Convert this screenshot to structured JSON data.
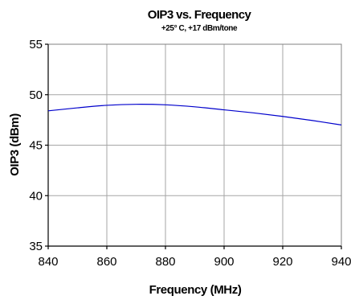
{
  "chart_data": {
    "type": "line",
    "title": "OIP3 vs. Frequency",
    "subtitle": "+25° C, +17 dBm/tone",
    "xlabel": "Frequency (MHz)",
    "ylabel": "OIP3 (dBm)",
    "xlim": [
      840,
      940
    ],
    "ylim": [
      35,
      55
    ],
    "xticks": [
      840,
      860,
      880,
      900,
      920,
      940
    ],
    "yticks": [
      35,
      40,
      45,
      50,
      55
    ],
    "grid": true,
    "series": [
      {
        "color": "#0000cc",
        "x": [
          840,
          850,
          860,
          870,
          880,
          890,
          900,
          910,
          920,
          930,
          940
        ],
        "y": [
          48.4,
          48.7,
          48.95,
          49.05,
          49.0,
          48.8,
          48.5,
          48.2,
          47.85,
          47.45,
          47.0
        ]
      }
    ]
  }
}
